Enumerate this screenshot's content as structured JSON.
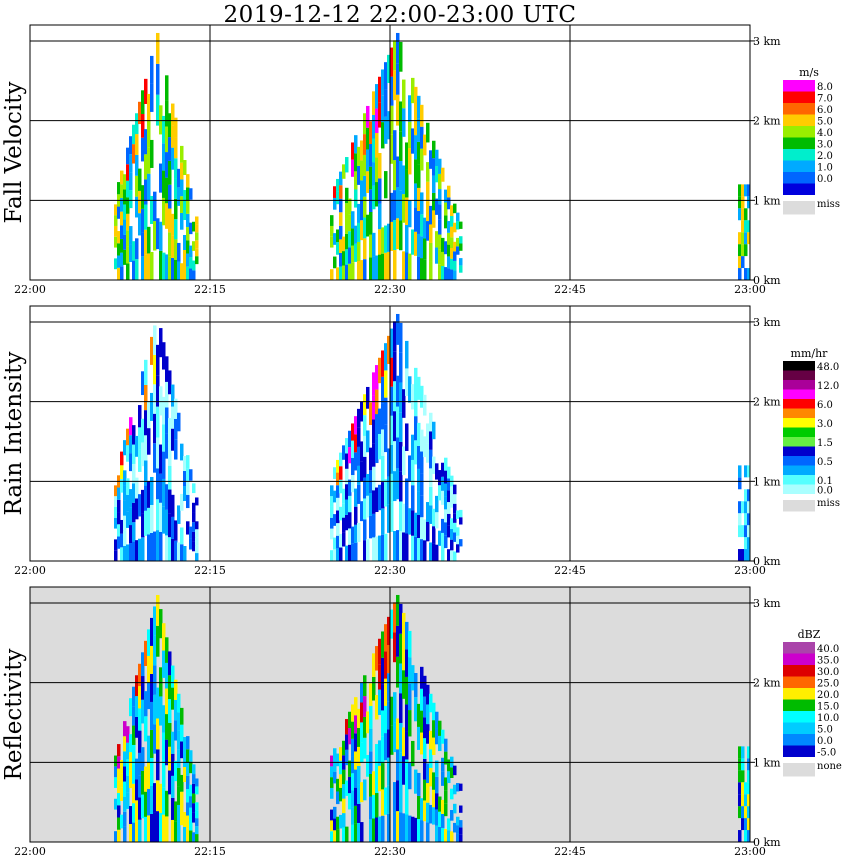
{
  "title": "2019-12-12   22:00-23:00 UTC",
  "colors": {
    "grid": "#000000",
    "none": "#dcdcdc"
  },
  "panels": [
    {
      "name": "fall-velocity",
      "ylabel": "Fall Velocity",
      "unit": "m/s",
      "grey_background": false,
      "legend": [
        {
          "label": "8.0",
          "color": "#ff00ff"
        },
        {
          "label": "7.0",
          "color": "#ff0000"
        },
        {
          "label": "6.0",
          "color": "#ff6600"
        },
        {
          "label": "5.0",
          "color": "#ffcc00"
        },
        {
          "label": "4.0",
          "color": "#99ee00"
        },
        {
          "label": "3.0",
          "color": "#00bb00"
        },
        {
          "label": "2.0",
          "color": "#00eecc"
        },
        {
          "label": "1.0",
          "color": "#00aaff"
        },
        {
          "label": "0.0",
          "color": "#0066ff"
        },
        {
          "label": "",
          "color": "#0000dd"
        },
        {
          "label": "miss",
          "color": "#dcdcdc",
          "gap": true
        }
      ]
    },
    {
      "name": "rain-intensity",
      "ylabel": "Rain Intensity",
      "unit": "mm/hr",
      "grey_background": false,
      "legend": [
        {
          "label": "48.0",
          "color": "#000000"
        },
        {
          "label": "",
          "color": "#660044"
        },
        {
          "label": "12.0",
          "color": "#aa0099"
        },
        {
          "label": "",
          "color": "#ff00ff"
        },
        {
          "label": "6.0",
          "color": "#ff0000"
        },
        {
          "label": "",
          "color": "#ff8800"
        },
        {
          "label": "3.0",
          "color": "#ffff00"
        },
        {
          "label": "",
          "color": "#00cc00"
        },
        {
          "label": "1.5",
          "color": "#66ee44"
        },
        {
          "label": "",
          "color": "#0000cc"
        },
        {
          "label": "0.5",
          "color": "#0066ff"
        },
        {
          "label": "",
          "color": "#00aaff"
        },
        {
          "label": "0.1",
          "color": "#55ffff"
        },
        {
          "label": "0.0",
          "color": "#aaffff"
        },
        {
          "label": "miss",
          "color": "#dcdcdc",
          "gap": true
        }
      ]
    },
    {
      "name": "reflectivity",
      "ylabel": "Reflectivity",
      "unit": "dBZ",
      "grey_background": true,
      "legend": [
        {
          "label": "40.0",
          "color": "#aa44aa"
        },
        {
          "label": "35.0",
          "color": "#cc00cc"
        },
        {
          "label": "30.0",
          "color": "#dd0000"
        },
        {
          "label": "25.0",
          "color": "#ff6600"
        },
        {
          "label": "20.0",
          "color": "#ffee00"
        },
        {
          "label": "15.0",
          "color": "#00bb00"
        },
        {
          "label": "10.0",
          "color": "#00ffff"
        },
        {
          "label": "5.0",
          "color": "#00ccff"
        },
        {
          "label": "0.0",
          "color": "#0088ff"
        },
        {
          "label": "-5.0",
          "color": "#0000cc"
        },
        {
          "label": "none",
          "color": "#dcdcdc",
          "gap": true
        }
      ]
    }
  ],
  "chart_data": {
    "type": "heatmap",
    "title": "2019-12-12   22:00-23:00 UTC",
    "x_ticks": [
      "22:00",
      "22:15",
      "22:30",
      "22:45",
      "23:00"
    ],
    "x_range_utc": [
      "22:00",
      "23:00"
    ],
    "y_ticks": [
      "0 km",
      "1 km",
      "2 km",
      "3 km"
    ],
    "y_range_km": [
      0,
      3.2
    ],
    "grid": true,
    "series": [
      {
        "name": "Fall Velocity",
        "unit": "m/s"
      },
      {
        "name": "Rain Intensity",
        "unit": "mm/hr"
      },
      {
        "name": "Reflectivity",
        "unit": "dBZ"
      }
    ],
    "echoes": [
      {
        "t_start": "22:07",
        "t_end": "22:14",
        "top_km": 3.1
      },
      {
        "t_start": "22:25",
        "t_end": "22:36",
        "top_km": 3.1
      },
      {
        "t_start": "22:59",
        "t_end": "23:00",
        "top_km": 1.2
      }
    ]
  }
}
